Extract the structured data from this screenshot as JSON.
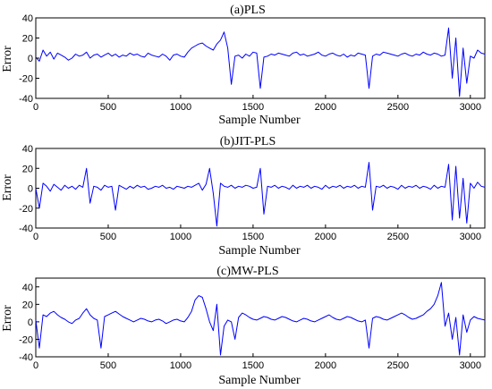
{
  "chart_data": [
    {
      "type": "line",
      "title": "(a)PLS",
      "xlabel": "Sample Number",
      "ylabel": "Error",
      "xlim": [
        0,
        3100
      ],
      "ylim": [
        -40,
        40
      ],
      "xticks": [
        "0",
        "500",
        "1000",
        "1500",
        "2000",
        "2500",
        "3000"
      ],
      "yticks": [
        "40",
        "20",
        "0",
        "-20",
        "-40"
      ],
      "line_color": "#0000ff",
      "series": [
        {
          "x_start": 0,
          "x_step": 25,
          "values": [
            1,
            -3,
            8,
            2,
            6,
            -1,
            5,
            3,
            1,
            -2,
            0,
            4,
            2,
            3,
            6,
            0,
            3,
            4,
            1,
            3,
            5,
            2,
            4,
            1,
            3,
            2,
            5,
            3,
            4,
            2,
            1,
            5,
            3,
            2,
            1,
            4,
            2,
            -2,
            3,
            4,
            2,
            1,
            6,
            10,
            12,
            14,
            15,
            12,
            10,
            8,
            14,
            18,
            26,
            10,
            -26,
            2,
            3,
            0,
            4,
            2,
            6,
            5,
            -30,
            1,
            2,
            4,
            3,
            5,
            4,
            3,
            2,
            5,
            6,
            3,
            4,
            2,
            3,
            4,
            6,
            3,
            2,
            4,
            5,
            3,
            2,
            4,
            1,
            3,
            2,
            5,
            4,
            3,
            -30,
            2,
            4,
            3,
            6,
            5,
            4,
            3,
            2,
            4,
            5,
            3,
            2,
            4,
            3,
            6,
            4,
            3,
            5,
            4,
            2,
            3,
            30,
            -20,
            20,
            -38,
            10,
            -25,
            2,
            0,
            8,
            5,
            4
          ]
        }
      ]
    },
    {
      "type": "line",
      "title": "(b)JIT-PLS",
      "xlabel": "Sample Number",
      "ylabel": "Error",
      "xlim": [
        0,
        3100
      ],
      "ylim": [
        -40,
        40
      ],
      "xticks": [
        "0",
        "500",
        "1000",
        "1500",
        "2000",
        "2500",
        "3000"
      ],
      "yticks": [
        "40",
        "20",
        "0",
        "-20",
        "-40"
      ],
      "line_color": "#0000ff",
      "series": [
        {
          "x_start": 0,
          "x_step": 25,
          "values": [
            0,
            -20,
            5,
            2,
            -3,
            4,
            1,
            -2,
            3,
            0,
            2,
            -1,
            3,
            1,
            20,
            -15,
            2,
            1,
            -2,
            3,
            1,
            2,
            -22,
            3,
            1,
            -1,
            2,
            0,
            3,
            1,
            2,
            -1,
            0,
            2,
            1,
            3,
            0,
            1,
            -1,
            2,
            1,
            0,
            2,
            1,
            3,
            5,
            -2,
            4,
            20,
            -5,
            -38,
            5,
            2,
            1,
            3,
            0,
            2,
            1,
            3,
            2,
            0,
            1,
            20,
            -26,
            2,
            1,
            3,
            0,
            2,
            1,
            -1,
            3,
            0,
            2,
            1,
            3,
            0,
            2,
            1,
            -1,
            3,
            0,
            2,
            1,
            3,
            0,
            2,
            1,
            3,
            0,
            2,
            1,
            26,
            -22,
            2,
            1,
            3,
            0,
            2,
            1,
            -1,
            3,
            0,
            2,
            1,
            3,
            0,
            2,
            1,
            -1,
            3,
            0,
            2,
            1,
            24,
            -32,
            22,
            -30,
            10,
            -35,
            5,
            0,
            6,
            2,
            1
          ]
        }
      ]
    },
    {
      "type": "line",
      "title": "(c)MW-PLS",
      "xlabel": "Sample Number",
      "ylabel": "Error",
      "xlim": [
        0,
        3100
      ],
      "ylim": [
        -40,
        50
      ],
      "xticks": [
        "0",
        "500",
        "1000",
        "1500",
        "2000",
        "2500",
        "3000"
      ],
      "yticks": [
        "40",
        "20",
        "0",
        "-20",
        "-40"
      ],
      "line_color": "#0000ff",
      "series": [
        {
          "x_start": 0,
          "x_step": 25,
          "values": [
            2,
            -30,
            8,
            6,
            10,
            12,
            8,
            5,
            3,
            0,
            -2,
            2,
            4,
            10,
            15,
            8,
            4,
            2,
            -30,
            6,
            8,
            10,
            12,
            9,
            6,
            4,
            2,
            0,
            2,
            4,
            3,
            1,
            0,
            2,
            3,
            1,
            -2,
            0,
            2,
            3,
            1,
            0,
            5,
            12,
            25,
            30,
            28,
            15,
            0,
            -10,
            20,
            -38,
            -5,
            2,
            0,
            -20,
            5,
            10,
            8,
            5,
            3,
            2,
            4,
            6,
            5,
            3,
            2,
            4,
            6,
            5,
            3,
            1,
            0,
            2,
            4,
            3,
            1,
            0,
            2,
            4,
            6,
            8,
            5,
            3,
            2,
            4,
            6,
            5,
            3,
            1,
            0,
            2,
            -30,
            4,
            6,
            5,
            3,
            2,
            4,
            6,
            8,
            10,
            8,
            5,
            3,
            4,
            6,
            8,
            12,
            15,
            20,
            30,
            45,
            -5,
            10,
            -20,
            5,
            -38,
            8,
            -12,
            2,
            6,
            4,
            3,
            2
          ]
        }
      ]
    }
  ]
}
